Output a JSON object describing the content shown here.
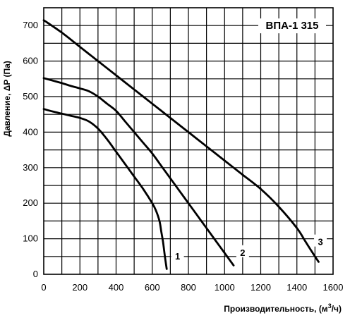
{
  "chart_data": {
    "type": "line",
    "title": "ВПА-1 315",
    "xlabel": "Производительность, (м",
    "xlabel_sup": "3",
    "xlabel_tail": "/ч)",
    "ylabel": "Давление, ΔP (Па)",
    "xlim": [
      0,
      1600
    ],
    "ylim": [
      0,
      750
    ],
    "x_ticks": [
      0,
      200,
      400,
      600,
      800,
      1000,
      1200,
      1400,
      1600
    ],
    "y_ticks": [
      0,
      100,
      200,
      300,
      400,
      500,
      600,
      700
    ],
    "x_minor_step": 100,
    "y_minor_step": 50,
    "grid": true,
    "legend": "none",
    "series": [
      {
        "label": "1",
        "x": [
          0,
          50,
          100,
          150,
          200,
          250,
          300,
          350,
          400,
          450,
          500,
          550,
          600,
          620,
          640,
          650,
          660,
          670,
          680
        ],
        "y": [
          465,
          458,
          452,
          446,
          440,
          430,
          410,
          380,
          345,
          310,
          275,
          240,
          200,
          180,
          150,
          120,
          90,
          50,
          15
        ],
        "label_at": [
          740,
          50
        ]
      },
      {
        "label": "2",
        "x": [
          0,
          50,
          100,
          150,
          200,
          250,
          300,
          350,
          400,
          450,
          500,
          550,
          600,
          650,
          700,
          750,
          800,
          850,
          900,
          950,
          1000,
          1050
        ],
        "y": [
          552,
          545,
          538,
          530,
          523,
          515,
          500,
          480,
          460,
          430,
          400,
          370,
          340,
          305,
          270,
          235,
          200,
          165,
          130,
          95,
          60,
          25
        ],
        "label_at": [
          1100,
          60
        ]
      },
      {
        "label": "3",
        "x": [
          0,
          100,
          200,
          300,
          400,
          500,
          600,
          700,
          800,
          900,
          1000,
          1100,
          1200,
          1300,
          1400,
          1450,
          1500,
          1520
        ],
        "y": [
          715,
          680,
          640,
          600,
          560,
          520,
          480,
          440,
          400,
          360,
          320,
          280,
          240,
          190,
          130,
          90,
          50,
          35
        ],
        "label_at": [
          1530,
          90
        ]
      }
    ]
  }
}
